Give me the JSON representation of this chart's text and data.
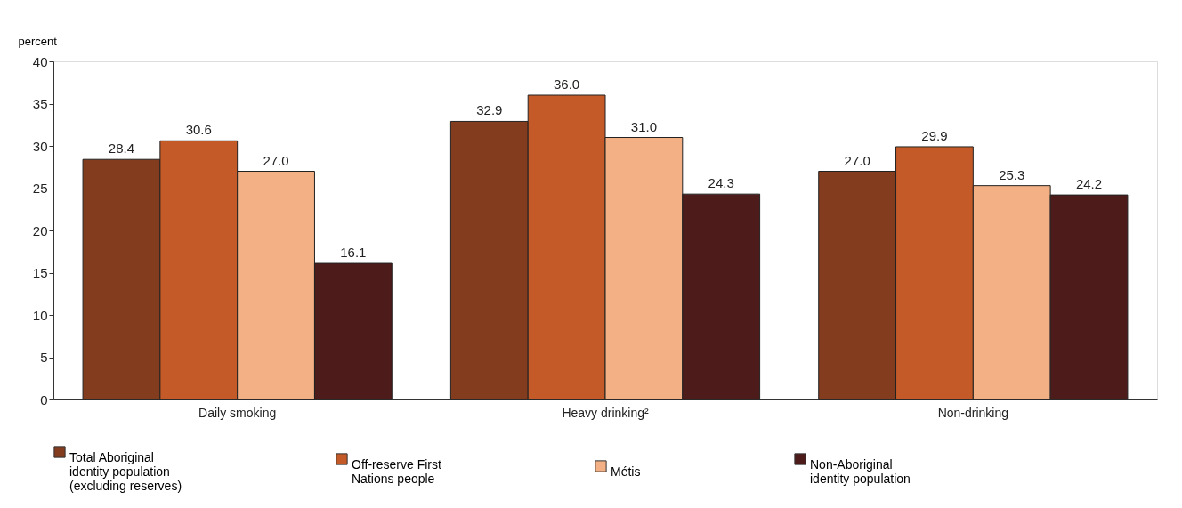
{
  "chart_data": {
    "type": "bar",
    "ylabel": "percent",
    "categories": [
      "Daily smoking",
      "Heavy drinking²",
      "Non-drinking"
    ],
    "series": [
      {
        "name": "Total Aboriginal identity population (excluding reserves)",
        "color": "#843c1e",
        "values": [
          28.4,
          32.9,
          27.0
        ],
        "value_labels": [
          "28.4",
          "32.9",
          "27.0"
        ]
      },
      {
        "name": "Off-reserve First Nations people",
        "color": "#c45a27",
        "values": [
          30.6,
          36.0,
          29.9
        ],
        "value_labels": [
          "30.6",
          "36.0",
          "29.9"
        ]
      },
      {
        "name": "Métis",
        "color": "#f2b084",
        "values": [
          27.0,
          31.0,
          25.3
        ],
        "value_labels": [
          "27.0",
          "31.0",
          "25.3"
        ]
      },
      {
        "name": "Non-Aboriginal identity population",
        "color": "#4e1b1b",
        "values": [
          16.1,
          24.3,
          24.2
        ],
        "value_labels": [
          "16.1",
          "24.3",
          "24.2"
        ]
      }
    ],
    "ylim": [
      0,
      40
    ],
    "yticks": [
      0,
      5,
      10,
      15,
      20,
      25,
      30,
      35,
      40
    ],
    "grid": false,
    "legend": "bottom"
  }
}
